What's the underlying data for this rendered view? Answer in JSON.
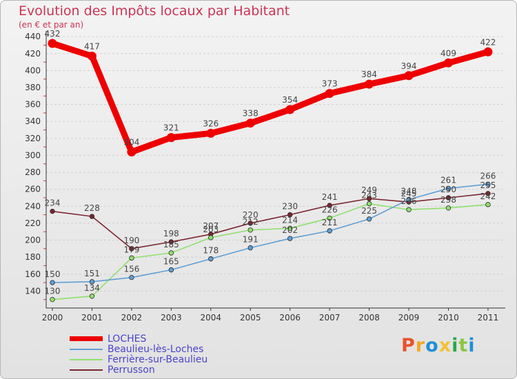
{
  "header": {
    "title": "Evolution des Impôts locaux par Habitant",
    "subtitle": "(en € et par an)"
  },
  "brand": {
    "text": "Proxiti",
    "colors": [
      "#e8522c",
      "#f5a623",
      "#1f8fd6",
      "#f2c230",
      "#2aa84a",
      "#8cc63f",
      "#1f8fd6"
    ]
  },
  "chart_data": {
    "type": "line",
    "title": "Evolution des Impôts locaux par Habitant",
    "subtitle": "(en € et par an)",
    "xlabel": "",
    "ylabel": "",
    "categories": [
      "2000",
      "2001",
      "2002",
      "2003",
      "2004",
      "2005",
      "2006",
      "2007",
      "2008",
      "2009",
      "2010",
      "2011"
    ],
    "ylim": [
      120,
      445
    ],
    "yticks": [
      140,
      160,
      180,
      200,
      220,
      240,
      260,
      280,
      300,
      320,
      340,
      360,
      380,
      400,
      420,
      440
    ],
    "grid": "horizontal dashed",
    "legend_position": "bottom-left",
    "series": [
      {
        "name": "LOCHES",
        "color": "#ee0000",
        "values": [
          432,
          417,
          304,
          321,
          326,
          338,
          354,
          373,
          384,
          394,
          409,
          422
        ]
      },
      {
        "name": "Beaulieu-lès-Loches",
        "color": "#5f9fd5",
        "values": [
          150,
          151,
          156,
          165,
          178,
          191,
          202,
          211,
          225,
          248,
          261,
          266
        ]
      },
      {
        "name": "Ferrière-sur-Beaulieu",
        "color": "#90e06c",
        "values": [
          130,
          134,
          179,
          185,
          203,
          212,
          214,
          226,
          243,
          236,
          238,
          242
        ]
      },
      {
        "name": "Perrusson",
        "color": "#7a2630",
        "values": [
          234,
          228,
          190,
          198,
          207,
          220,
          230,
          241,
          249,
          245,
          250,
          255
        ]
      }
    ]
  }
}
